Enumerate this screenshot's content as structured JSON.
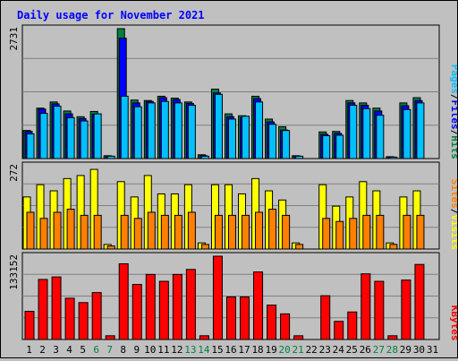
{
  "title": "Daily usage for November 2021",
  "colors": {
    "background": "#c0c0c0",
    "title": "#0000ff",
    "hits": "#008040",
    "files": "#0000ff",
    "pages": "#00c0ff",
    "visits": "#ffff00",
    "sites": "#ff8000",
    "kbytes": "#ff0000",
    "weekend_label": "#008040"
  },
  "panels": {
    "top": {
      "max_label": "2731",
      "legend": [
        {
          "text": "Pages",
          "color": "#00c0ff"
        },
        {
          "text": "/",
          "color": "#000000"
        },
        {
          "text": "Files",
          "color": "#0000ff"
        },
        {
          "text": "/",
          "color": "#000000"
        },
        {
          "text": "Hits",
          "color": "#008040"
        }
      ]
    },
    "middle": {
      "max_label": "272",
      "legend": [
        {
          "text": "Sites",
          "color": "#ff8000"
        },
        {
          "text": "/",
          "color": "#000000"
        },
        {
          "text": "Visits",
          "color": "#ffff00"
        }
      ]
    },
    "bottom": {
      "max_label": "133152",
      "legend": [
        {
          "text": "KBytes",
          "color": "#ff0000"
        }
      ]
    }
  },
  "chart_data": {
    "type": "bar",
    "title": "Daily usage for November 2021",
    "categories": [
      "1",
      "2",
      "3",
      "4",
      "5",
      "6",
      "7",
      "8",
      "9",
      "10",
      "11",
      "12",
      "13",
      "14",
      "15",
      "16",
      "17",
      "18",
      "19",
      "20",
      "21",
      "22",
      "23",
      "24",
      "25",
      "26",
      "27",
      "28",
      "29",
      "30",
      "31"
    ],
    "weekend_days": [
      "6",
      "7",
      "13",
      "14",
      "20",
      "21",
      "27",
      "28"
    ],
    "charts": [
      {
        "panel": "top",
        "ylim": [
          0,
          2731
        ],
        "series": [
          {
            "name": "Hits",
            "values": [
              590,
              1060,
              1190,
              1000,
              880,
              990,
              60,
              2731,
              1230,
              1220,
              1310,
              1270,
              1190,
              80,
              1460,
              940,
              900,
              1310,
              830,
              670,
              60,
              0,
              560,
              570,
              1220,
              1170,
              1060,
              40,
              1170,
              1280,
              0
            ]
          },
          {
            "name": "Files",
            "values": [
              570,
              1040,
              1150,
              940,
              840,
              930,
              50,
              2530,
              1170,
              1200,
              1280,
              1240,
              1160,
              60,
              1380,
              880,
              860,
              1260,
              770,
              600,
              50,
              0,
              510,
              530,
              1170,
              1120,
              1000,
              30,
              1110,
              1220,
              0
            ]
          },
          {
            "name": "Pages",
            "values": [
              520,
              950,
              1100,
              860,
              790,
              940,
              50,
              1310,
              1090,
              1170,
              1200,
              1170,
              1120,
              50,
              1350,
              830,
              890,
              1190,
              720,
              590,
              50,
              0,
              480,
              490,
              1120,
              1050,
              910,
              30,
              1030,
              1170,
              0
            ]
          }
        ]
      },
      {
        "panel": "middle",
        "ylim": [
          0,
          272
        ],
        "series": [
          {
            "name": "Visits",
            "values": [
              170,
              210,
              190,
              230,
              240,
              260,
              15,
              220,
              170,
              240,
              180,
              180,
              210,
              20,
              210,
              210,
              180,
              230,
              190,
              160,
              20,
              0,
              210,
              140,
              170,
              220,
              190,
              20,
              170,
              190,
              0
            ]
          },
          {
            "name": "Sites",
            "values": [
              120,
              100,
              120,
              130,
              110,
              110,
              10,
              110,
              100,
              120,
              110,
              110,
              120,
              15,
              110,
              110,
              110,
              120,
              130,
              110,
              15,
              0,
              100,
              90,
              100,
              110,
              110,
              15,
              110,
              110,
              0
            ]
          }
        ]
      },
      {
        "panel": "bottom",
        "ylim": [
          0,
          133152
        ],
        "series": [
          {
            "name": "KBytes",
            "values": [
              45000,
              96000,
              100000,
              66000,
              59000,
              75000,
              6000,
              121000,
              88000,
              104000,
              93000,
              104000,
              112000,
              6000,
              133152,
              68000,
              68000,
              108000,
              55000,
              41000,
              6000,
              0,
              70000,
              29000,
              44000,
              105000,
              93000,
              6000,
              95000,
              120000,
              0
            ]
          }
        ]
      }
    ]
  }
}
